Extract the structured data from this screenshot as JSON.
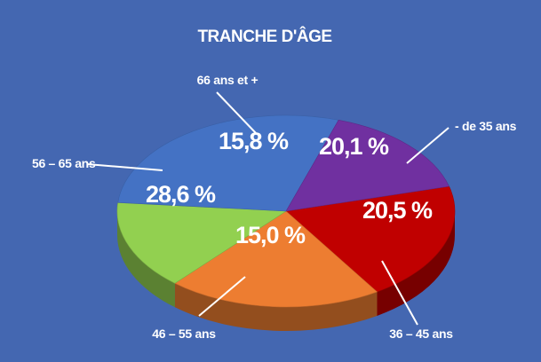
{
  "chart_data": {
    "type": "pie",
    "title": "TRANCHE D'ÂGE",
    "slices": [
      {
        "label": "- de 35 ans",
        "value": 20.1,
        "display": "20,1 %",
        "color": "#c00000"
      },
      {
        "label": "36 – 45 ans",
        "value": 20.5,
        "display": "20,5 %",
        "color": "#ed7d31"
      },
      {
        "label": "46 – 55 ans",
        "value": 15.0,
        "display": "15,0 %",
        "color": "#92d050"
      },
      {
        "label": "56 – 65 ans",
        "value": 28.6,
        "display": "28,6 %",
        "color": "#4472c4"
      },
      {
        "label": "66 ans et +",
        "value": 15.8,
        "display": "15,8 %",
        "color": "#7030a0"
      }
    ],
    "legend": "none",
    "style": "3d"
  }
}
